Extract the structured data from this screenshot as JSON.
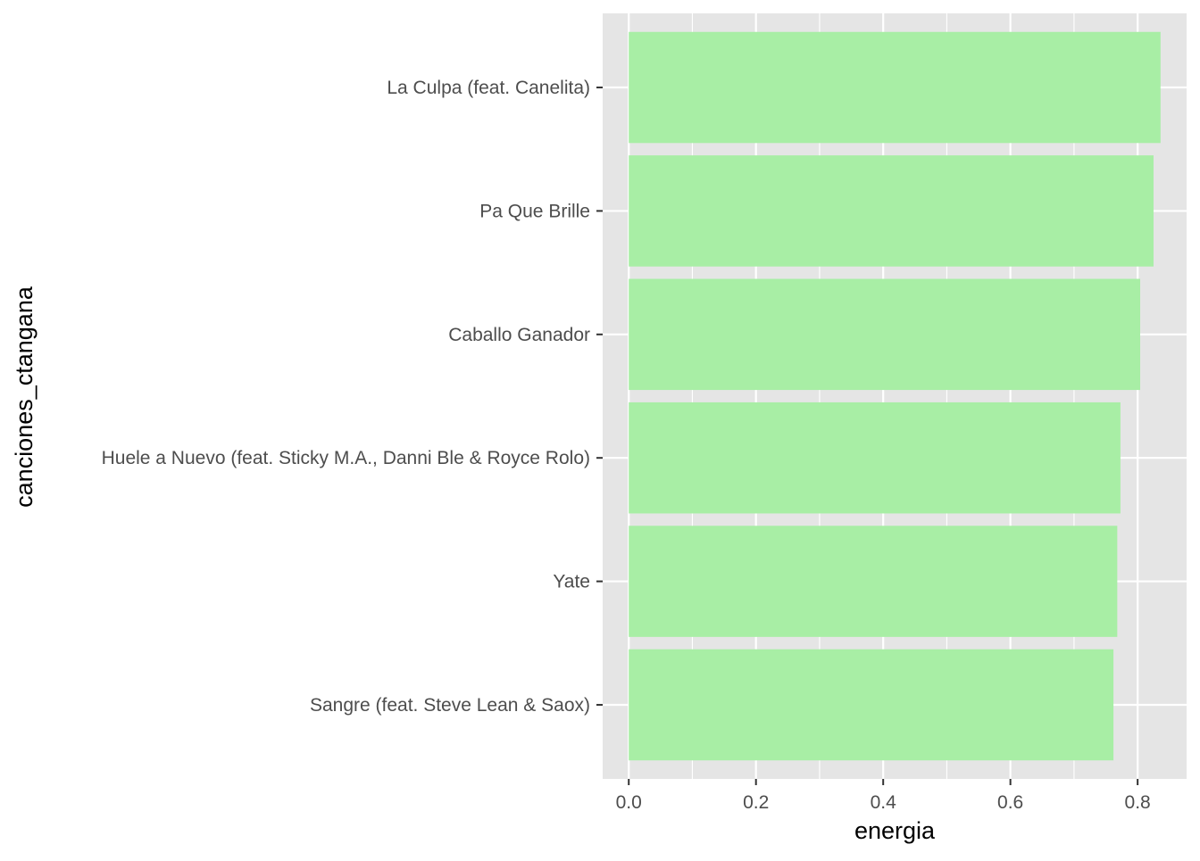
{
  "chart_data": {
    "type": "bar",
    "orientation": "horizontal",
    "xlabel": "energia",
    "ylabel": "canciones_ctangana",
    "categories": [
      "La Culpa (feat. Canelita)",
      "Pa Que Brille",
      "Caballo Ganador",
      "Huele a Nuevo (feat. Sticky M.A., Danni Ble & Royce Rolo)",
      "Yate",
      "Sangre (feat. Steve Lean & Saox)"
    ],
    "values": [
      0.836,
      0.825,
      0.804,
      0.773,
      0.768,
      0.762
    ],
    "xlim": [
      -0.041,
      0.877
    ],
    "xticks": [
      0.0,
      0.2,
      0.4,
      0.6,
      0.8
    ],
    "xtick_labels": [
      "0.0",
      "0.2",
      "0.4",
      "0.6",
      "0.8"
    ],
    "grid": true,
    "legend": "none",
    "colors": {
      "bar": "#a8eea5",
      "panel": "#e5e5e5",
      "grid": "#ffffff",
      "tick": "#333333",
      "tick_label": "#4d4d4d"
    }
  }
}
